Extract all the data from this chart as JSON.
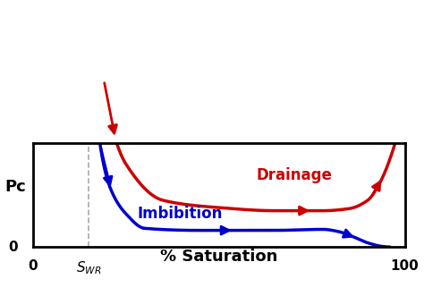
{
  "title": "",
  "xlabel": "% Saturation",
  "ylabel": "Pc",
  "xlim": [
    0,
    100
  ],
  "ylim": [
    0,
    10
  ],
  "swr": 15,
  "drainage_color": "#cc0000",
  "imbibition_color": "#0000cc",
  "dashed_color": "#aaaaaa",
  "drainage_label": "Drainage",
  "imbibition_label": "Imbibition",
  "background_color": "#ffffff",
  "figsize": [
    4.74,
    3.31
  ],
  "dpi": 100
}
